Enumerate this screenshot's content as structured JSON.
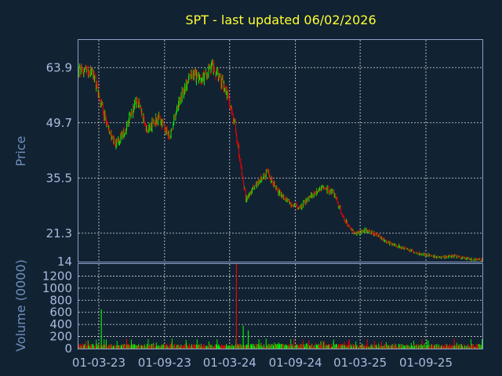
{
  "colors": {
    "background": "#112233",
    "title": "#ffff33",
    "axis_text": "#aabbdd",
    "axis_label": "#6e8fbd",
    "frame": "#8ea0c8",
    "grid": "#ffffff",
    "up": "#00ee00",
    "down": "#ee0000"
  },
  "chart_data": [
    {
      "type": "candlestick",
      "title": "SPT - last updated 06/02/2026",
      "ylabel": "Price",
      "xlabel": "",
      "y_tick_labels": [
        "63.9",
        "49.7",
        "35.5",
        "21.3",
        "14"
      ],
      "ylim": [
        14,
        71
      ],
      "grid": true,
      "legend": "none",
      "x_tick_labels": [
        "01-03-23",
        "01-09-23",
        "01-03-24",
        "01-09-24",
        "01-03-25",
        "01-09-25"
      ],
      "x_range": [
        "2023-01-03",
        "2026-02-06"
      ],
      "series": [
        {
          "x": [
            "2023-01",
            "2023-02",
            "2023-03",
            "2023-04",
            "2023-05",
            "2023-06",
            "2023-07",
            "2023-08",
            "2023-09",
            "2023-10",
            "2023-11",
            "2023-12",
            "2024-01",
            "2024-02",
            "2024-03",
            "2024-04",
            "2024-05",
            "2024-06",
            "2024-07",
            "2024-08",
            "2024-09",
            "2024-10",
            "2024-11",
            "2024-12",
            "2025-01",
            "2025-02",
            "2025-03",
            "2025-04",
            "2025-05",
            "2025-06",
            "2025-07",
            "2025-08",
            "2025-09",
            "2025-10",
            "2025-11",
            "2025-12",
            "2026-01"
          ],
          "close": [
            63,
            62,
            52,
            44,
            48,
            56,
            48,
            51,
            46,
            56,
            62,
            61,
            64,
            59,
            50,
            30,
            34,
            37,
            32,
            29,
            28,
            31,
            33,
            32,
            25,
            21,
            22,
            21,
            19,
            18,
            17,
            16,
            15.5,
            15,
            15.5,
            15,
            14.5
          ]
        }
      ]
    },
    {
      "type": "bar",
      "ylabel": "Volume (0000)",
      "xlabel": "",
      "y_tick_labels": [
        "0",
        "200",
        "400",
        "600",
        "800",
        "1000",
        "1200"
      ],
      "ylim": [
        0,
        1400
      ],
      "grid": true,
      "legend": "none",
      "x_tick_labels": [
        "01-03-23",
        "01-09-23",
        "01-03-24",
        "01-09-24",
        "01-03-25",
        "01-09-25"
      ],
      "typical_volume": [
        20,
        80
      ],
      "spikes": [
        {
          "x": "2023-03-08",
          "value": 650
        },
        {
          "x": "2024-03-20",
          "value": 1400
        },
        {
          "x": "2024-04-08",
          "value": 380
        },
        {
          "x": "2024-04-22",
          "value": 300
        }
      ]
    }
  ]
}
